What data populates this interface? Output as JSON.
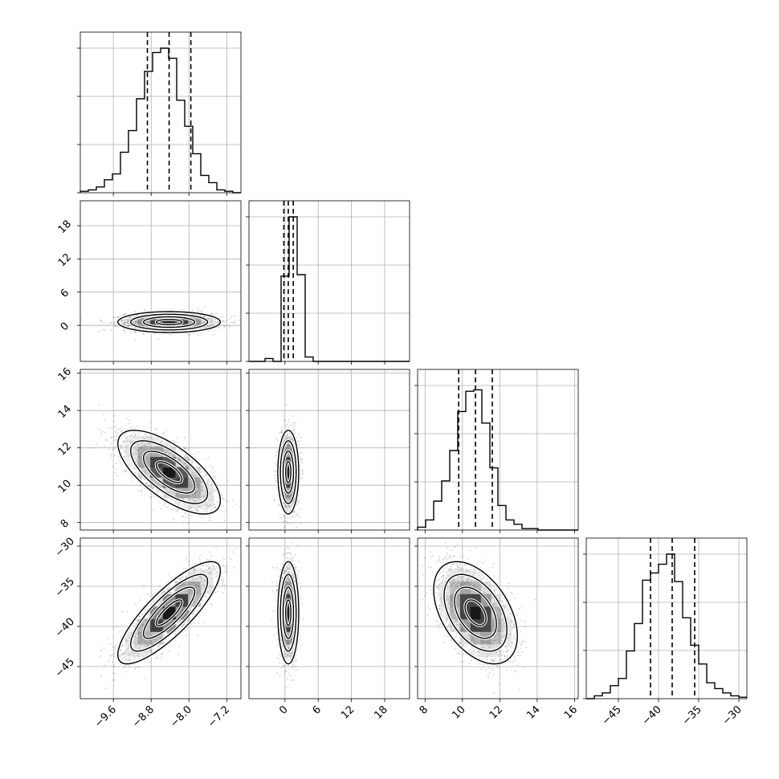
{
  "chart_data": {
    "type": "corner",
    "title": "",
    "parameters": [
      {
        "index": 0,
        "range": [
          -10.3,
          -6.9
        ],
        "ticks": [
          -9.6,
          -8.8,
          -8.0,
          -7.2
        ],
        "tick_labels": [
          "−9.6",
          "−8.8",
          "−8.0",
          "−7.2"
        ]
      },
      {
        "index": 1,
        "range": [
          -6.5,
          22.5
        ],
        "ticks": [
          0,
          6,
          12,
          18
        ],
        "tick_labels": [
          "0",
          "6",
          "12",
          "18"
        ]
      },
      {
        "index": 2,
        "range": [
          7.6,
          16.2
        ],
        "ticks": [
          8,
          10,
          12,
          14,
          16
        ],
        "tick_labels": [
          "8",
          "10",
          "12",
          "14",
          "16"
        ]
      },
      {
        "index": 3,
        "range": [
          -49,
          -29
        ],
        "ticks": [
          -45,
          -40,
          -35,
          -30
        ],
        "tick_labels": [
          "−45",
          "−40",
          "−35",
          "−30"
        ]
      }
    ],
    "histograms": [
      {
        "param": 0,
        "edges_start": -10.3,
        "bin_width": 0.17,
        "counts": [
          0.01,
          0.02,
          0.04,
          0.09,
          0.13,
          0.28,
          0.43,
          0.65,
          0.84,
          0.97,
          1.0,
          0.93,
          0.64,
          0.46,
          0.27,
          0.12,
          0.07,
          0.02,
          0.01,
          0.0
        ],
        "quantiles": [
          -8.88,
          -8.42,
          -7.96
        ]
      },
      {
        "param": 1,
        "edges_start": -6.5,
        "bin_width": 1.45,
        "counts": [
          0.0,
          0.0,
          0.02,
          0.0,
          0.59,
          1.0,
          0.6,
          0.03,
          0.0,
          0.0,
          0.0,
          0.0,
          0.0,
          0.0,
          0.0,
          0.0,
          0.0,
          0.0,
          0.0,
          0.0
        ],
        "quantiles": [
          -0.2,
          0.6,
          1.5
        ]
      },
      {
        "param": 2,
        "edges_start": 7.6,
        "bin_width": 0.43,
        "counts": [
          0.02,
          0.07,
          0.2,
          0.34,
          0.55,
          0.82,
          0.96,
          0.97,
          0.74,
          0.43,
          0.17,
          0.07,
          0.04,
          0.01,
          0.01,
          0.0,
          0.0,
          0.0,
          0.0,
          0.0
        ],
        "quantiles": [
          9.8,
          10.7,
          11.6
        ]
      },
      {
        "param": 3,
        "edges_start": -49,
        "bin_width": 1.0,
        "counts": [
          0.0,
          0.02,
          0.04,
          0.09,
          0.14,
          0.33,
          0.52,
          0.82,
          0.87,
          0.93,
          1.0,
          0.81,
          0.56,
          0.37,
          0.24,
          0.11,
          0.07,
          0.04,
          0.02,
          0.01
        ],
        "quantiles": [
          -41.0,
          -38.3,
          -35.5
        ]
      }
    ],
    "joints": [
      {
        "x_param": 0,
        "y_param": 1,
        "mean": [
          -8.42,
          0.6
        ],
        "sd": [
          0.46,
          0.8
        ],
        "corr": 0.0
      },
      {
        "x_param": 0,
        "y_param": 2,
        "mean": [
          -8.42,
          10.7
        ],
        "sd": [
          0.46,
          0.95
        ],
        "corr": -0.68
      },
      {
        "x_param": 1,
        "y_param": 2,
        "mean": [
          0.6,
          10.7
        ],
        "sd": [
          0.8,
          0.95
        ],
        "corr": 0.0
      },
      {
        "x_param": 0,
        "y_param": 3,
        "mean": [
          -8.42,
          -38.3
        ],
        "sd": [
          0.46,
          2.7
        ],
        "corr": 0.82
      },
      {
        "x_param": 1,
        "y_param": 3,
        "mean": [
          0.6,
          -38.3
        ],
        "sd": [
          0.8,
          2.7
        ],
        "corr": 0.0
      },
      {
        "x_param": 2,
        "y_param": 3,
        "mean": [
          10.7,
          -38.3
        ],
        "sd": [
          0.95,
          2.7
        ],
        "corr": -0.45
      }
    ],
    "contour_levels_sigma": [
      0.5,
      1.0,
      1.5,
      2.0
    ],
    "grid": true,
    "legend": "none"
  }
}
